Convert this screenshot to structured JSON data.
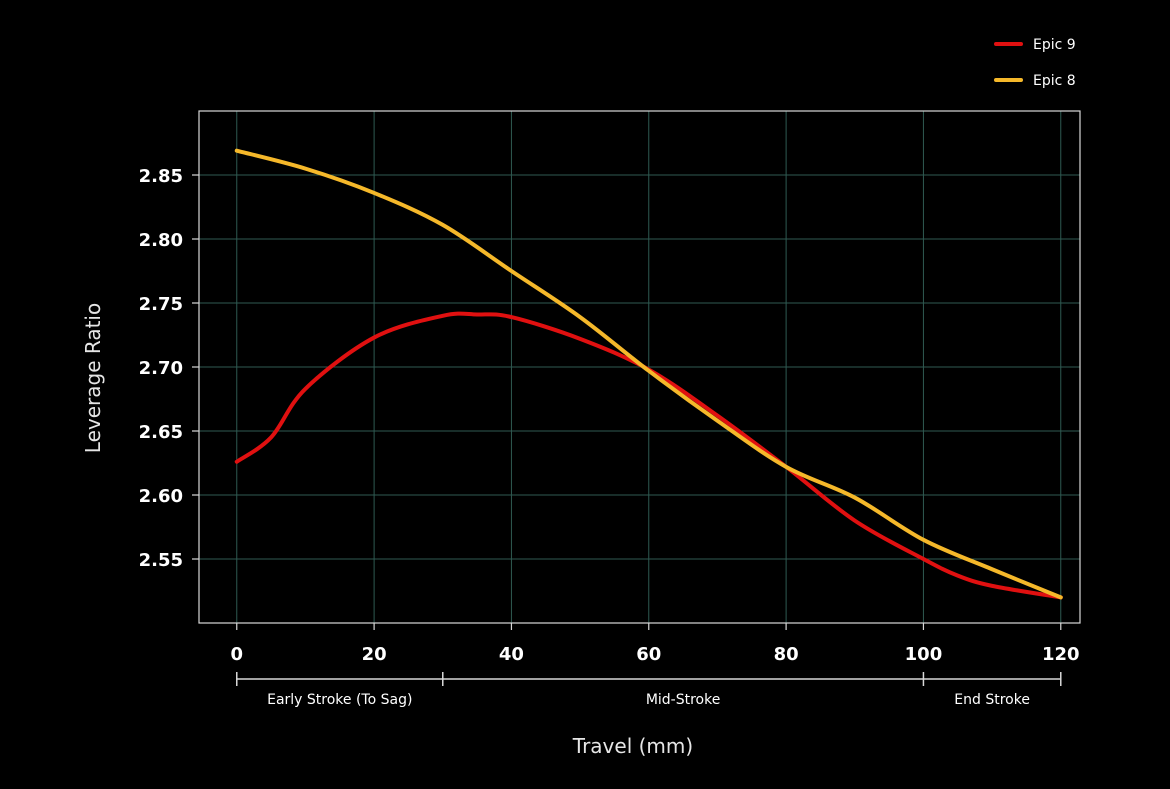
{
  "chart_data": {
    "type": "line",
    "title": "",
    "xlabel": "Travel (mm)",
    "ylabel": "Leverage Ratio",
    "xlim": [
      -5.5,
      122.8
    ],
    "ylim": [
      2.5,
      2.9
    ],
    "xticks": [
      0,
      20,
      40,
      60,
      80,
      100,
      120
    ],
    "yticks": [
      2.55,
      2.6,
      2.65,
      2.7,
      2.75,
      2.8,
      2.85
    ],
    "xtick_labels": [
      "0",
      "20",
      "40",
      "60",
      "80",
      "100",
      "120"
    ],
    "ytick_labels": [
      "2.55",
      "2.60",
      "2.65",
      "2.70",
      "2.75",
      "2.80",
      "2.85"
    ],
    "grid": true,
    "legend_placement": "top-right",
    "background": "#000000",
    "series": [
      {
        "name": "Epic 9",
        "color": "#e01010",
        "x": [
          0,
          5,
          10,
          20,
          30,
          35,
          40,
          50,
          60,
          70,
          80,
          90,
          100,
          105,
          110,
          120
        ],
        "y": [
          2.626,
          2.645,
          2.683,
          2.723,
          2.74,
          2.741,
          2.739,
          2.722,
          2.698,
          2.662,
          2.622,
          2.58,
          2.55,
          2.537,
          2.529,
          2.52
        ]
      },
      {
        "name": "Epic 8",
        "color": "#f5b82a",
        "x": [
          0,
          10,
          20,
          30,
          40,
          50,
          60,
          70,
          80,
          90,
          100,
          110,
          120
        ],
        "y": [
          2.869,
          2.855,
          2.836,
          2.811,
          2.775,
          2.739,
          2.697,
          2.658,
          2.622,
          2.598,
          2.565,
          2.542,
          2.52
        ]
      }
    ],
    "annotations": [
      {
        "label": "Early Stroke (To Sag)",
        "from": 0,
        "to": 30
      },
      {
        "label": "Mid-Stroke",
        "from": 30,
        "to": 100
      },
      {
        "label": "End Stroke",
        "from": 100,
        "to": 120
      }
    ]
  }
}
